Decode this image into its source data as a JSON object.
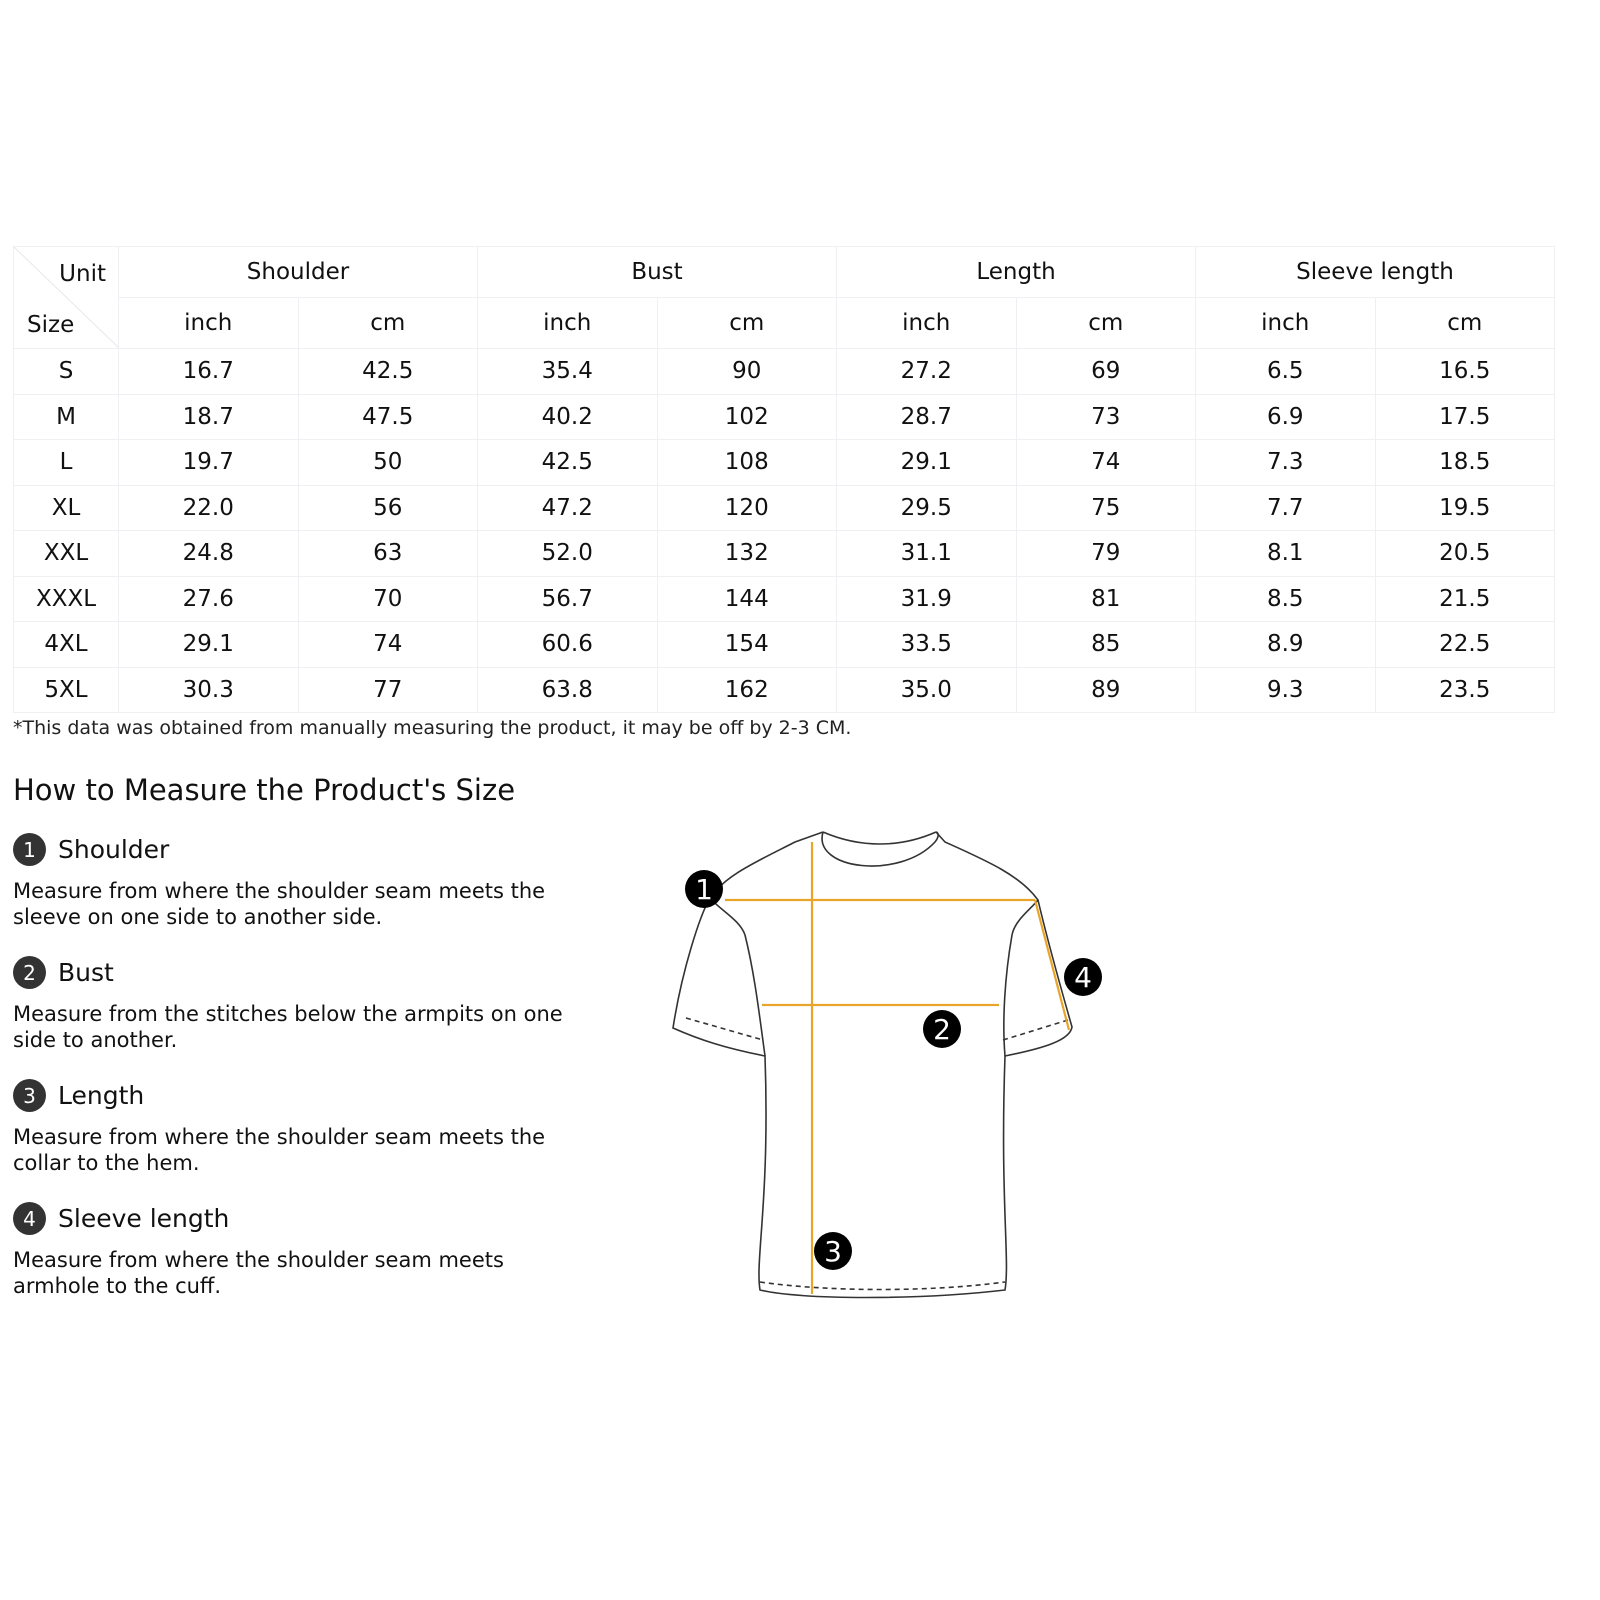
{
  "table": {
    "corner": {
      "unit": "Unit",
      "size": "Size"
    },
    "groups": [
      "Shoulder",
      "Bust",
      "Length",
      "Sleeve length"
    ],
    "units": [
      "inch",
      "cm",
      "inch",
      "cm",
      "inch",
      "cm",
      "inch",
      "cm"
    ],
    "rows": [
      {
        "size": "S",
        "values": [
          "16.7",
          "42.5",
          "35.4",
          "90",
          "27.2",
          "69",
          "6.5",
          "16.5"
        ]
      },
      {
        "size": "M",
        "values": [
          "18.7",
          "47.5",
          "40.2",
          "102",
          "28.7",
          "73",
          "6.9",
          "17.5"
        ]
      },
      {
        "size": "L",
        "values": [
          "19.7",
          "50",
          "42.5",
          "108",
          "29.1",
          "74",
          "7.3",
          "18.5"
        ]
      },
      {
        "size": "XL",
        "values": [
          "22.0",
          "56",
          "47.2",
          "120",
          "29.5",
          "75",
          "7.7",
          "19.5"
        ]
      },
      {
        "size": "XXL",
        "values": [
          "24.8",
          "63",
          "52.0",
          "132",
          "31.1",
          "79",
          "8.1",
          "20.5"
        ]
      },
      {
        "size": "XXXL",
        "values": [
          "27.6",
          "70",
          "56.7",
          "144",
          "31.9",
          "81",
          "8.5",
          "21.5"
        ]
      },
      {
        "size": "4XL",
        "values": [
          "29.1",
          "74",
          "60.6",
          "154",
          "33.5",
          "85",
          "8.9",
          "22.5"
        ]
      },
      {
        "size": "5XL",
        "values": [
          "30.3",
          "77",
          "63.8",
          "162",
          "35.0",
          "89",
          "9.3",
          "23.5"
        ]
      }
    ]
  },
  "note": "*This data was obtained from manually measuring the product, it may be off by 2-3 CM.",
  "howto": {
    "title": "How to Measure the Product's Size",
    "items": [
      {
        "num": "1",
        "title": "Shoulder",
        "desc": "Measure from where the shoulder seam meets the sleeve on one side to another side."
      },
      {
        "num": "2",
        "title": "Bust",
        "desc": "Measure from the stitches below the armpits on one side to another."
      },
      {
        "num": "3",
        "title": "Length",
        "desc": "Measure from where the shoulder seam meets the collar to the hem."
      },
      {
        "num": "4",
        "title": "Sleeve length",
        "desc": "Measure from where the shoulder seam meets armhole to the cuff."
      }
    ]
  },
  "diagram": {
    "markers": [
      "1",
      "2",
      "3",
      "4"
    ],
    "line_color": "#e8a52a"
  }
}
